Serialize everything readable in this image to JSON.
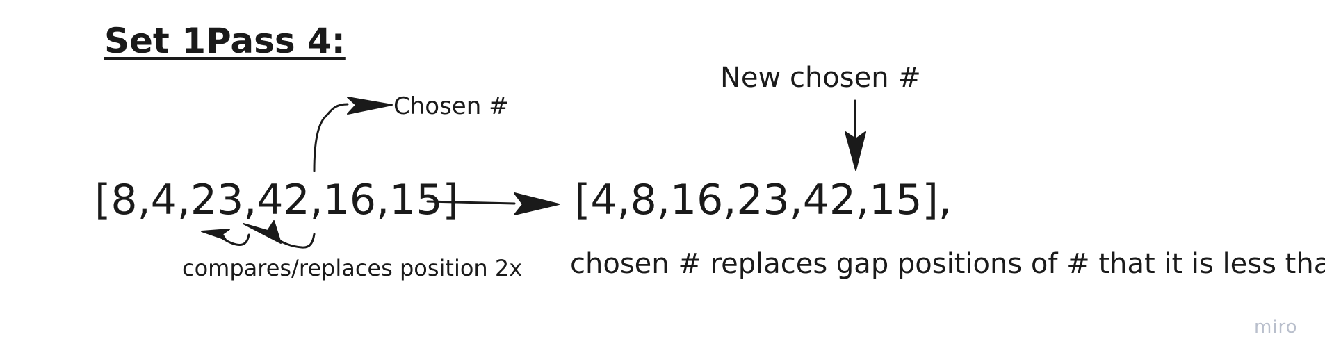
{
  "title": "Set 1Pass 4:",
  "arrays": {
    "before": "[8,4,23,42,16,15]",
    "after": "[4,8,16,23,42,15],"
  },
  "labels": {
    "chosen": "Chosen #",
    "new_chosen": "New chosen #",
    "compares": "compares/replaces position 2x",
    "explanation": "chosen # replaces gap positions of # that it is less than"
  },
  "watermark": "miro",
  "colors": {
    "ink": "#1a1a1a",
    "watermark": "#b9bfcc",
    "background": "#ffffff"
  }
}
